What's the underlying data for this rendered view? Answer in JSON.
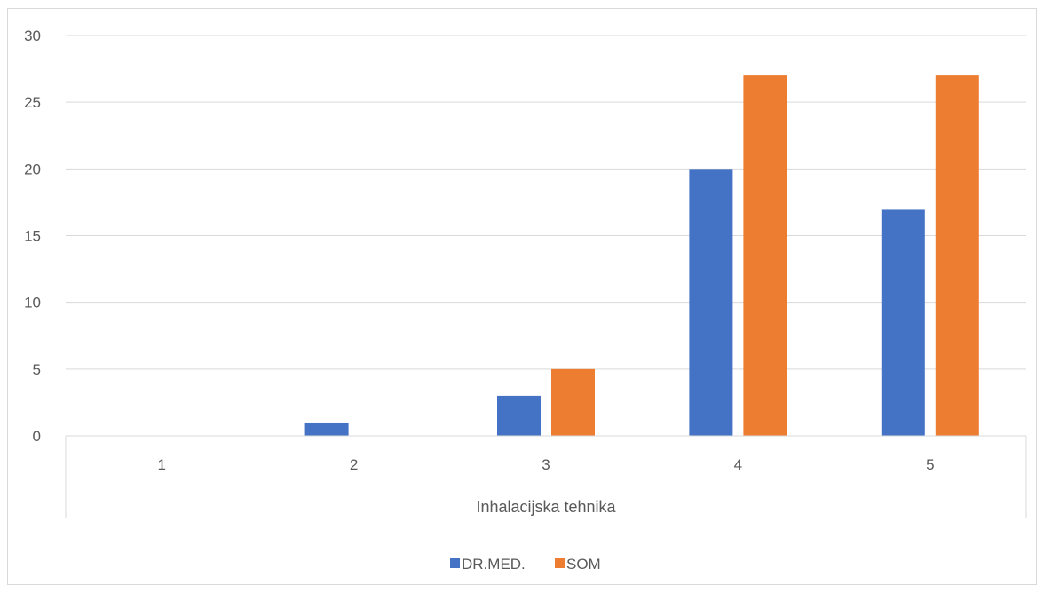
{
  "chart_data": {
    "type": "bar",
    "title": "",
    "xlabel": "Inhalacijska tehnika",
    "ylabel": "",
    "categories": [
      "1",
      "2",
      "3",
      "4",
      "5"
    ],
    "series": [
      {
        "name": "DR.MED.",
        "color": "#4472c4",
        "values": [
          0,
          1,
          3,
          20,
          17
        ]
      },
      {
        "name": "SOM",
        "color": "#ed7d31",
        "values": [
          0,
          0,
          5,
          27,
          27
        ]
      }
    ],
    "ylim": [
      0,
      30
    ],
    "yticks": [
      "0",
      "5",
      "10",
      "15",
      "20",
      "25",
      "30"
    ],
    "grid": true,
    "legend_position": "bottom"
  }
}
